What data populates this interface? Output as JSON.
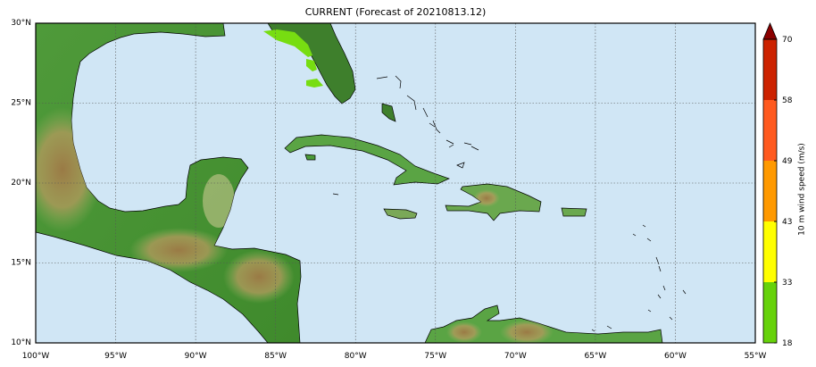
{
  "title": "CURRENT (Forecast of 20210813.12)",
  "map": {
    "lon_range": [
      -100,
      -55
    ],
    "lat_range": [
      10,
      30
    ],
    "lon_ticks": [
      "100°W",
      "95°W",
      "90°W",
      "85°W",
      "80°W",
      "75°W",
      "70°W",
      "65°W",
      "60°W",
      "55°W"
    ],
    "lat_ticks": [
      "10°N",
      "15°N",
      "20°N",
      "25°N",
      "30°N"
    ],
    "ocean_color": "#d0e6f5",
    "gridlines": "dotted"
  },
  "colorbar": {
    "label": "10 m wind speed (m/s)",
    "levels": [
      "18",
      "33",
      "43",
      "49",
      "58",
      "70"
    ],
    "colors": [
      "#66d20a",
      "#ffff00",
      "#ff9900",
      "#ff5a1f",
      "#cc2200"
    ],
    "extend_color": "#8b0000"
  }
}
